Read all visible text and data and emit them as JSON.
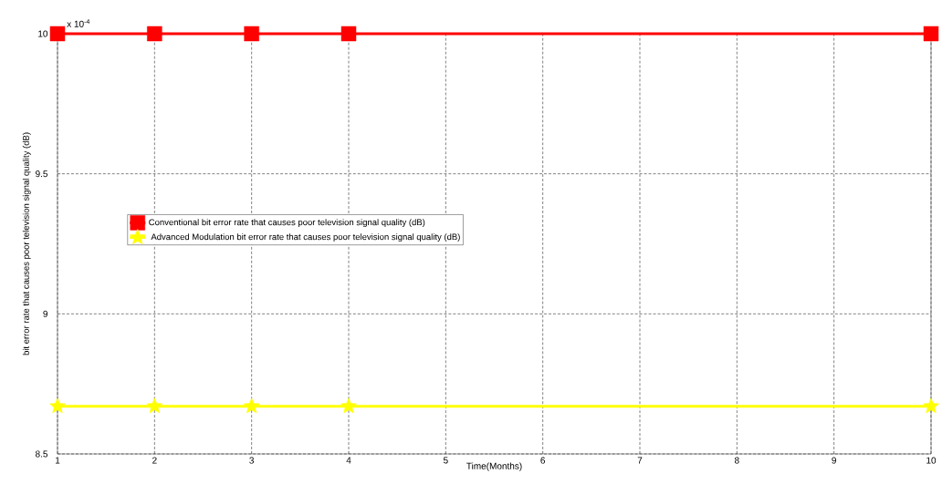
{
  "chart_data": {
    "type": "line",
    "xlabel": "Time(Months)",
    "ylabel": "bit error rate  that causes poor television signal quality (dB)",
    "annotations": [
      "x 10$^{-4}$"
    ],
    "x": [
      1,
      2,
      3,
      4,
      10
    ],
    "series": [
      {
        "name": "Conventional bit error rate  that causes poor television signal quality (dB)",
        "color": "#ff0000",
        "marker": "square",
        "values": [
          10,
          10,
          10,
          10,
          10
        ]
      },
      {
        "name": " Advanced Modulation bit error rate  that causes poor television signal quality (dB)",
        "color": "#ffff00",
        "marker": "star",
        "values": [
          8.67,
          8.67,
          8.67,
          8.67,
          8.67
        ]
      }
    ],
    "xlim": [
      1,
      10
    ],
    "xticks": [
      1,
      2,
      3,
      4,
      5,
      6,
      7,
      8,
      9,
      10
    ],
    "ylim": [
      8.5,
      10
    ],
    "yticks": [
      8.5,
      9,
      9.5,
      10
    ],
    "grid": true,
    "legend": "left",
    "line_style": "solid"
  }
}
